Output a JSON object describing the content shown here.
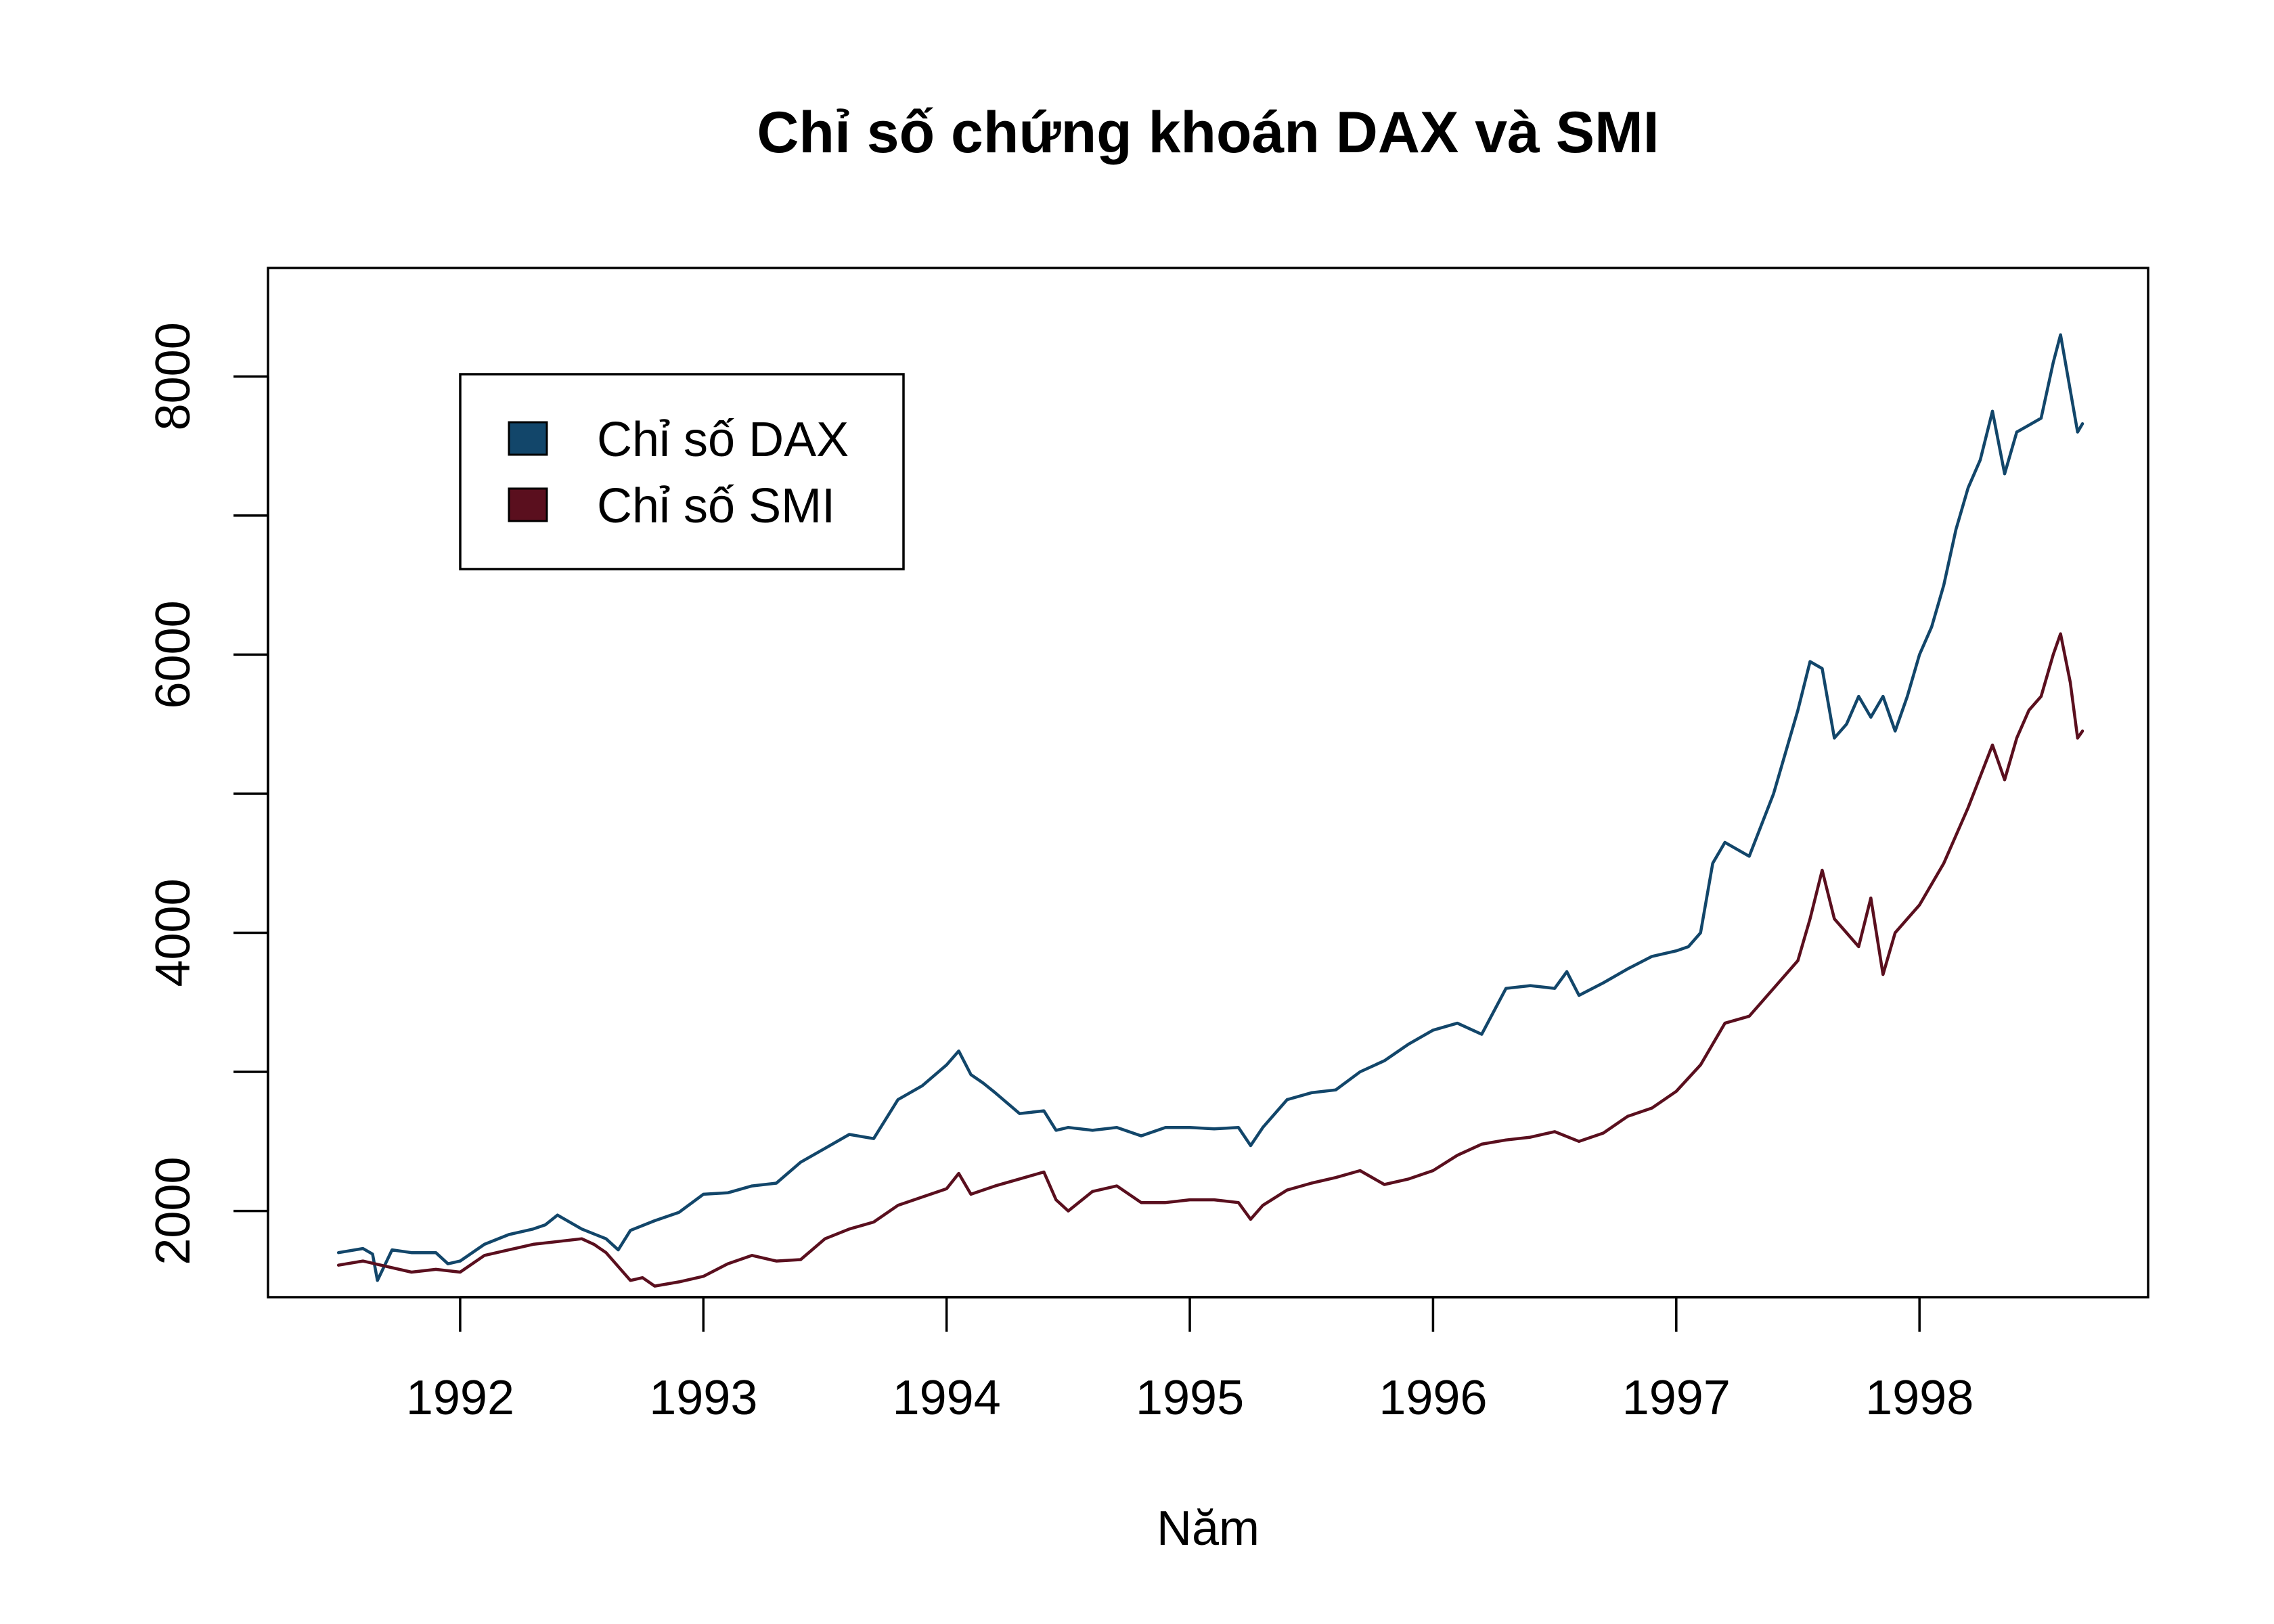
{
  "chart_data": {
    "type": "line",
    "title": "Chỉ số chứng khoán DAX và SMI",
    "xlabel": "Năm",
    "ylabel": "",
    "xlim": [
      1991.21,
      1998.94
    ],
    "ylim": [
      1380,
      8780
    ],
    "x_ticks": [
      1992,
      1993,
      1994,
      1995,
      1996,
      1997,
      1998
    ],
    "x_tick_labels": [
      "1992",
      "1993",
      "1994",
      "1995",
      "1996",
      "1997",
      "1998"
    ],
    "y_ticks": [
      2000,
      3000,
      4000,
      5000,
      6000,
      7000,
      8000
    ],
    "y_tick_labels": [
      "2000",
      "",
      "4000",
      "",
      "6000",
      "",
      "8000"
    ],
    "grid": false,
    "legend_position": "top-left",
    "series": [
      {
        "name": "Chỉ số DAX",
        "color": "#12466a",
        "x": [
          1991.5,
          1991.6,
          1991.64,
          1991.66,
          1991.72,
          1991.8,
          1991.9,
          1991.95,
          1992.0,
          1992.1,
          1992.2,
          1992.3,
          1992.35,
          1992.4,
          1992.5,
          1992.6,
          1992.65,
          1992.7,
          1992.8,
          1992.9,
          1993.0,
          1993.1,
          1993.2,
          1993.3,
          1993.4,
          1993.5,
          1993.6,
          1993.7,
          1993.8,
          1993.9,
          1994.0,
          1994.05,
          1994.1,
          1994.15,
          1994.2,
          1994.3,
          1994.4,
          1994.45,
          1994.5,
          1994.6,
          1994.7,
          1994.8,
          1994.9,
          1995.0,
          1995.1,
          1995.2,
          1995.25,
          1995.3,
          1995.4,
          1995.5,
          1995.6,
          1995.7,
          1995.8,
          1995.9,
          1996.0,
          1996.1,
          1996.2,
          1996.3,
          1996.4,
          1996.5,
          1996.55,
          1996.6,
          1996.7,
          1996.8,
          1996.9,
          1997.0,
          1997.05,
          1997.1,
          1997.15,
          1997.2,
          1997.3,
          1997.4,
          1997.5,
          1997.55,
          1997.6,
          1997.65,
          1997.7,
          1997.75,
          1997.8,
          1997.85,
          1997.9,
          1997.95,
          1998.0,
          1998.05,
          1998.1,
          1998.15,
          1998.2,
          1998.25,
          1998.3,
          1998.35,
          1998.4,
          1998.45,
          1998.5,
          1998.55,
          1998.58,
          1998.62,
          1998.65,
          1998.67
        ],
        "values": [
          1700,
          1730,
          1690,
          1500,
          1720,
          1700,
          1700,
          1620,
          1640,
          1760,
          1830,
          1870,
          1900,
          1970,
          1870,
          1800,
          1720,
          1860,
          1930,
          1990,
          2120,
          2130,
          2180,
          2200,
          2350,
          2450,
          2550,
          2520,
          2800,
          2900,
          3050,
          3150,
          2980,
          2920,
          2850,
          2700,
          2720,
          2580,
          2600,
          2580,
          2600,
          2540,
          2600,
          2600,
          2590,
          2600,
          2470,
          2600,
          2800,
          2850,
          2870,
          3000,
          3080,
          3200,
          3300,
          3350,
          3270,
          3600,
          3620,
          3600,
          3720,
          3550,
          3640,
          3740,
          3830,
          3870,
          3900,
          4000,
          4500,
          4650,
          4550,
          5000,
          5600,
          5950,
          5900,
          5400,
          5500,
          5700,
          5550,
          5700,
          5450,
          5700,
          6000,
          6200,
          6500,
          6900,
          7200,
          7400,
          7750,
          7300,
          7600,
          7650,
          7700,
          8100,
          8300,
          7900,
          7600,
          7660
        ]
      },
      {
        "name": "Chỉ số SMI",
        "color": "#5a0f1e",
        "x": [
          1991.5,
          1991.6,
          1991.7,
          1991.8,
          1991.9,
          1992.0,
          1992.1,
          1992.2,
          1992.3,
          1992.4,
          1992.5,
          1992.55,
          1992.6,
          1992.7,
          1992.75,
          1992.8,
          1992.9,
          1993.0,
          1993.1,
          1993.2,
          1993.3,
          1993.4,
          1993.5,
          1993.6,
          1993.7,
          1993.8,
          1993.9,
          1994.0,
          1994.05,
          1994.1,
          1994.2,
          1994.3,
          1994.4,
          1994.45,
          1994.5,
          1994.6,
          1994.7,
          1994.8,
          1994.9,
          1995.0,
          1995.1,
          1995.2,
          1995.25,
          1995.3,
          1995.4,
          1995.5,
          1995.6,
          1995.7,
          1995.8,
          1995.9,
          1996.0,
          1996.1,
          1996.2,
          1996.3,
          1996.4,
          1996.5,
          1996.6,
          1996.7,
          1996.8,
          1996.9,
          1997.0,
          1997.1,
          1997.2,
          1997.3,
          1997.4,
          1997.5,
          1997.55,
          1997.6,
          1997.65,
          1997.7,
          1997.75,
          1997.8,
          1997.85,
          1997.9,
          1997.95,
          1998.0,
          1998.1,
          1998.15,
          1998.2,
          1998.3,
          1998.35,
          1998.4,
          1998.45,
          1998.5,
          1998.55,
          1998.58,
          1998.62,
          1998.65,
          1998.67
        ],
        "values": [
          1610,
          1640,
          1600,
          1560,
          1580,
          1560,
          1680,
          1720,
          1760,
          1780,
          1800,
          1760,
          1700,
          1500,
          1520,
          1460,
          1490,
          1530,
          1620,
          1680,
          1640,
          1650,
          1800,
          1870,
          1920,
          2040,
          2100,
          2160,
          2270,
          2120,
          2180,
          2230,
          2280,
          2080,
          2000,
          2140,
          2180,
          2060,
          2060,
          2080,
          2080,
          2060,
          1940,
          2040,
          2150,
          2200,
          2240,
          2290,
          2190,
          2230,
          2290,
          2400,
          2480,
          2510,
          2530,
          2570,
          2500,
          2560,
          2680,
          2740,
          2860,
          3050,
          3350,
          3400,
          3600,
          3800,
          4100,
          4450,
          4100,
          4000,
          3900,
          4250,
          3700,
          4000,
          4100,
          4200,
          4500,
          4700,
          4900,
          5350,
          5100,
          5400,
          5600,
          5700,
          6000,
          6150,
          5800,
          5400,
          5450
        ]
      }
    ]
  }
}
